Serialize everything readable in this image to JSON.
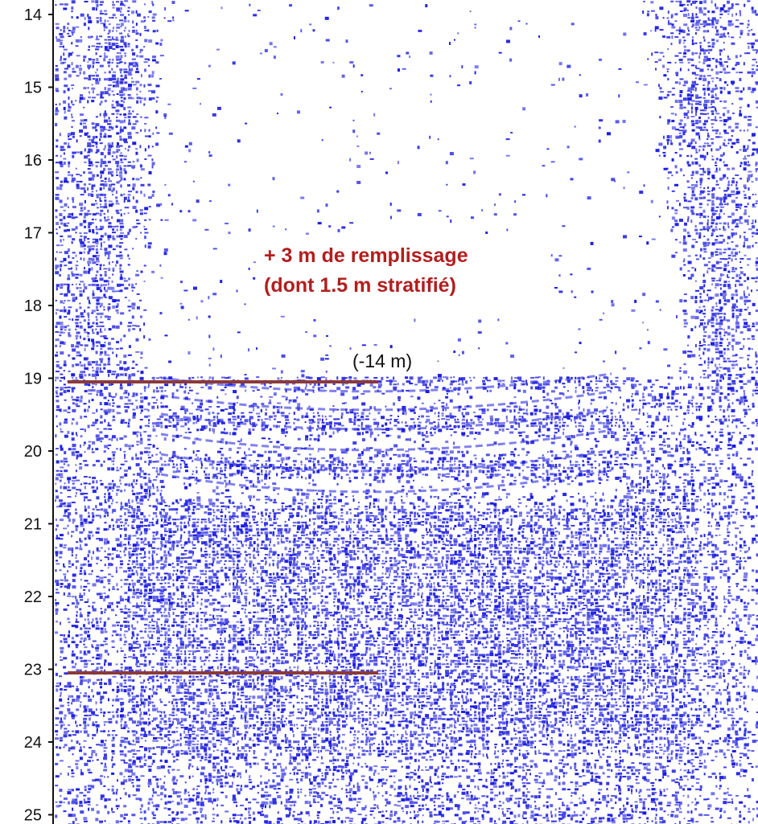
{
  "figure": {
    "type": "seismic-profile",
    "palette": {
      "background": "#ffffff",
      "signal": "#1a1ae0",
      "marker_line": "#8b3a3a",
      "annotation": "#b21e1e"
    },
    "depth_axis": {
      "ticks": [
        "14",
        "15",
        "16",
        "17",
        "18",
        "19",
        "20",
        "21",
        "22",
        "23",
        "24",
        "25"
      ],
      "range": [
        14,
        25
      ]
    },
    "markers": [
      {
        "name": "top-marker",
        "depth": 19.05
      },
      {
        "name": "bottom-marker",
        "depth": 23.05
      }
    ],
    "annotation": {
      "line1": "+ 3  m de remplissage",
      "line2": "(dont 1.5 m stratifié)"
    },
    "depth_label": "(-14 m)"
  }
}
